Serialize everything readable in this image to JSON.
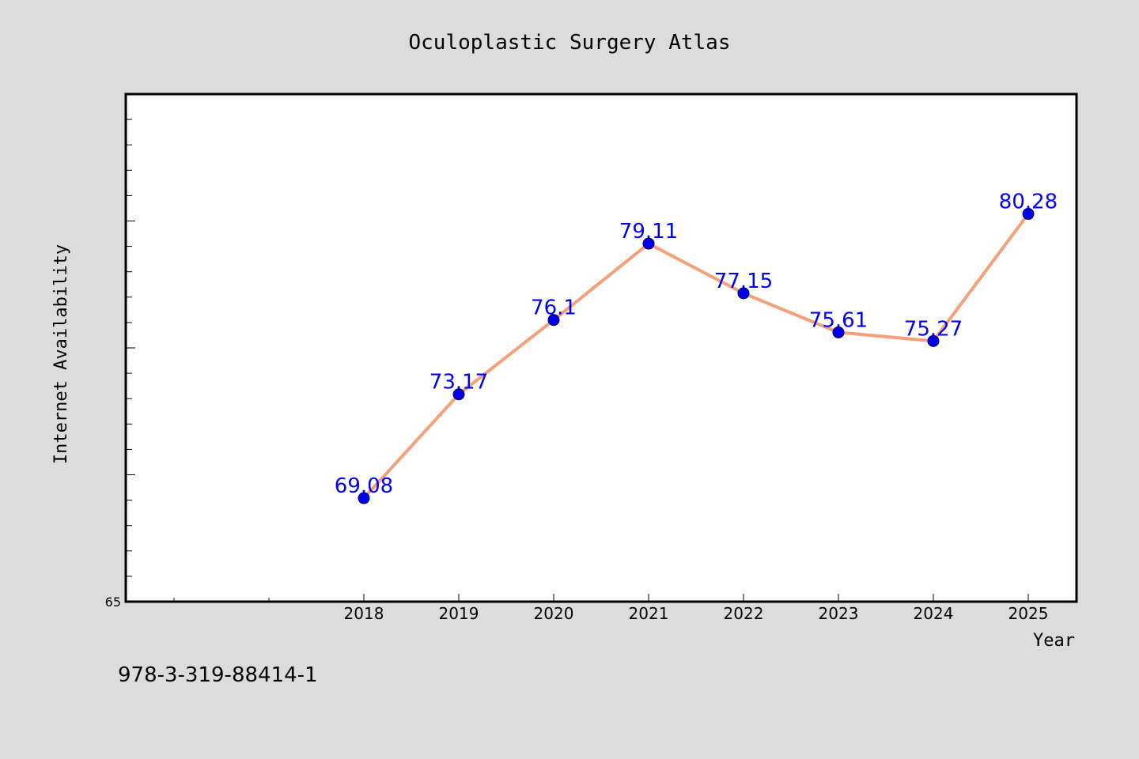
{
  "chart_data": {
    "type": "line",
    "title": "Oculoplastic Surgery Atlas",
    "xlabel": "Year",
    "ylabel": "Internet Availability",
    "categories": [
      "2018",
      "2019",
      "2020",
      "2021",
      "2022",
      "2023",
      "2024",
      "2025"
    ],
    "series": [
      {
        "values": [
          69.08,
          73.17,
          76.1,
          79.11,
          77.15,
          75.61,
          75.27,
          80.28
        ],
        "data_labels": [
          "69.08",
          "73.17",
          "76.1",
          "79.11",
          "77.15",
          "75.61",
          "75.27",
          "80.28"
        ]
      }
    ],
    "ylim": [
      65,
      85
    ],
    "y_tick_labels": [
      "65"
    ],
    "grid": false,
    "colors": {
      "line": "#f4a07a",
      "marker": "#0000ee",
      "label": "#0000ee",
      "background": "#dcdcdc",
      "plot_background": "#ffffff"
    }
  },
  "footer_text": "978-3-319-88414-1"
}
